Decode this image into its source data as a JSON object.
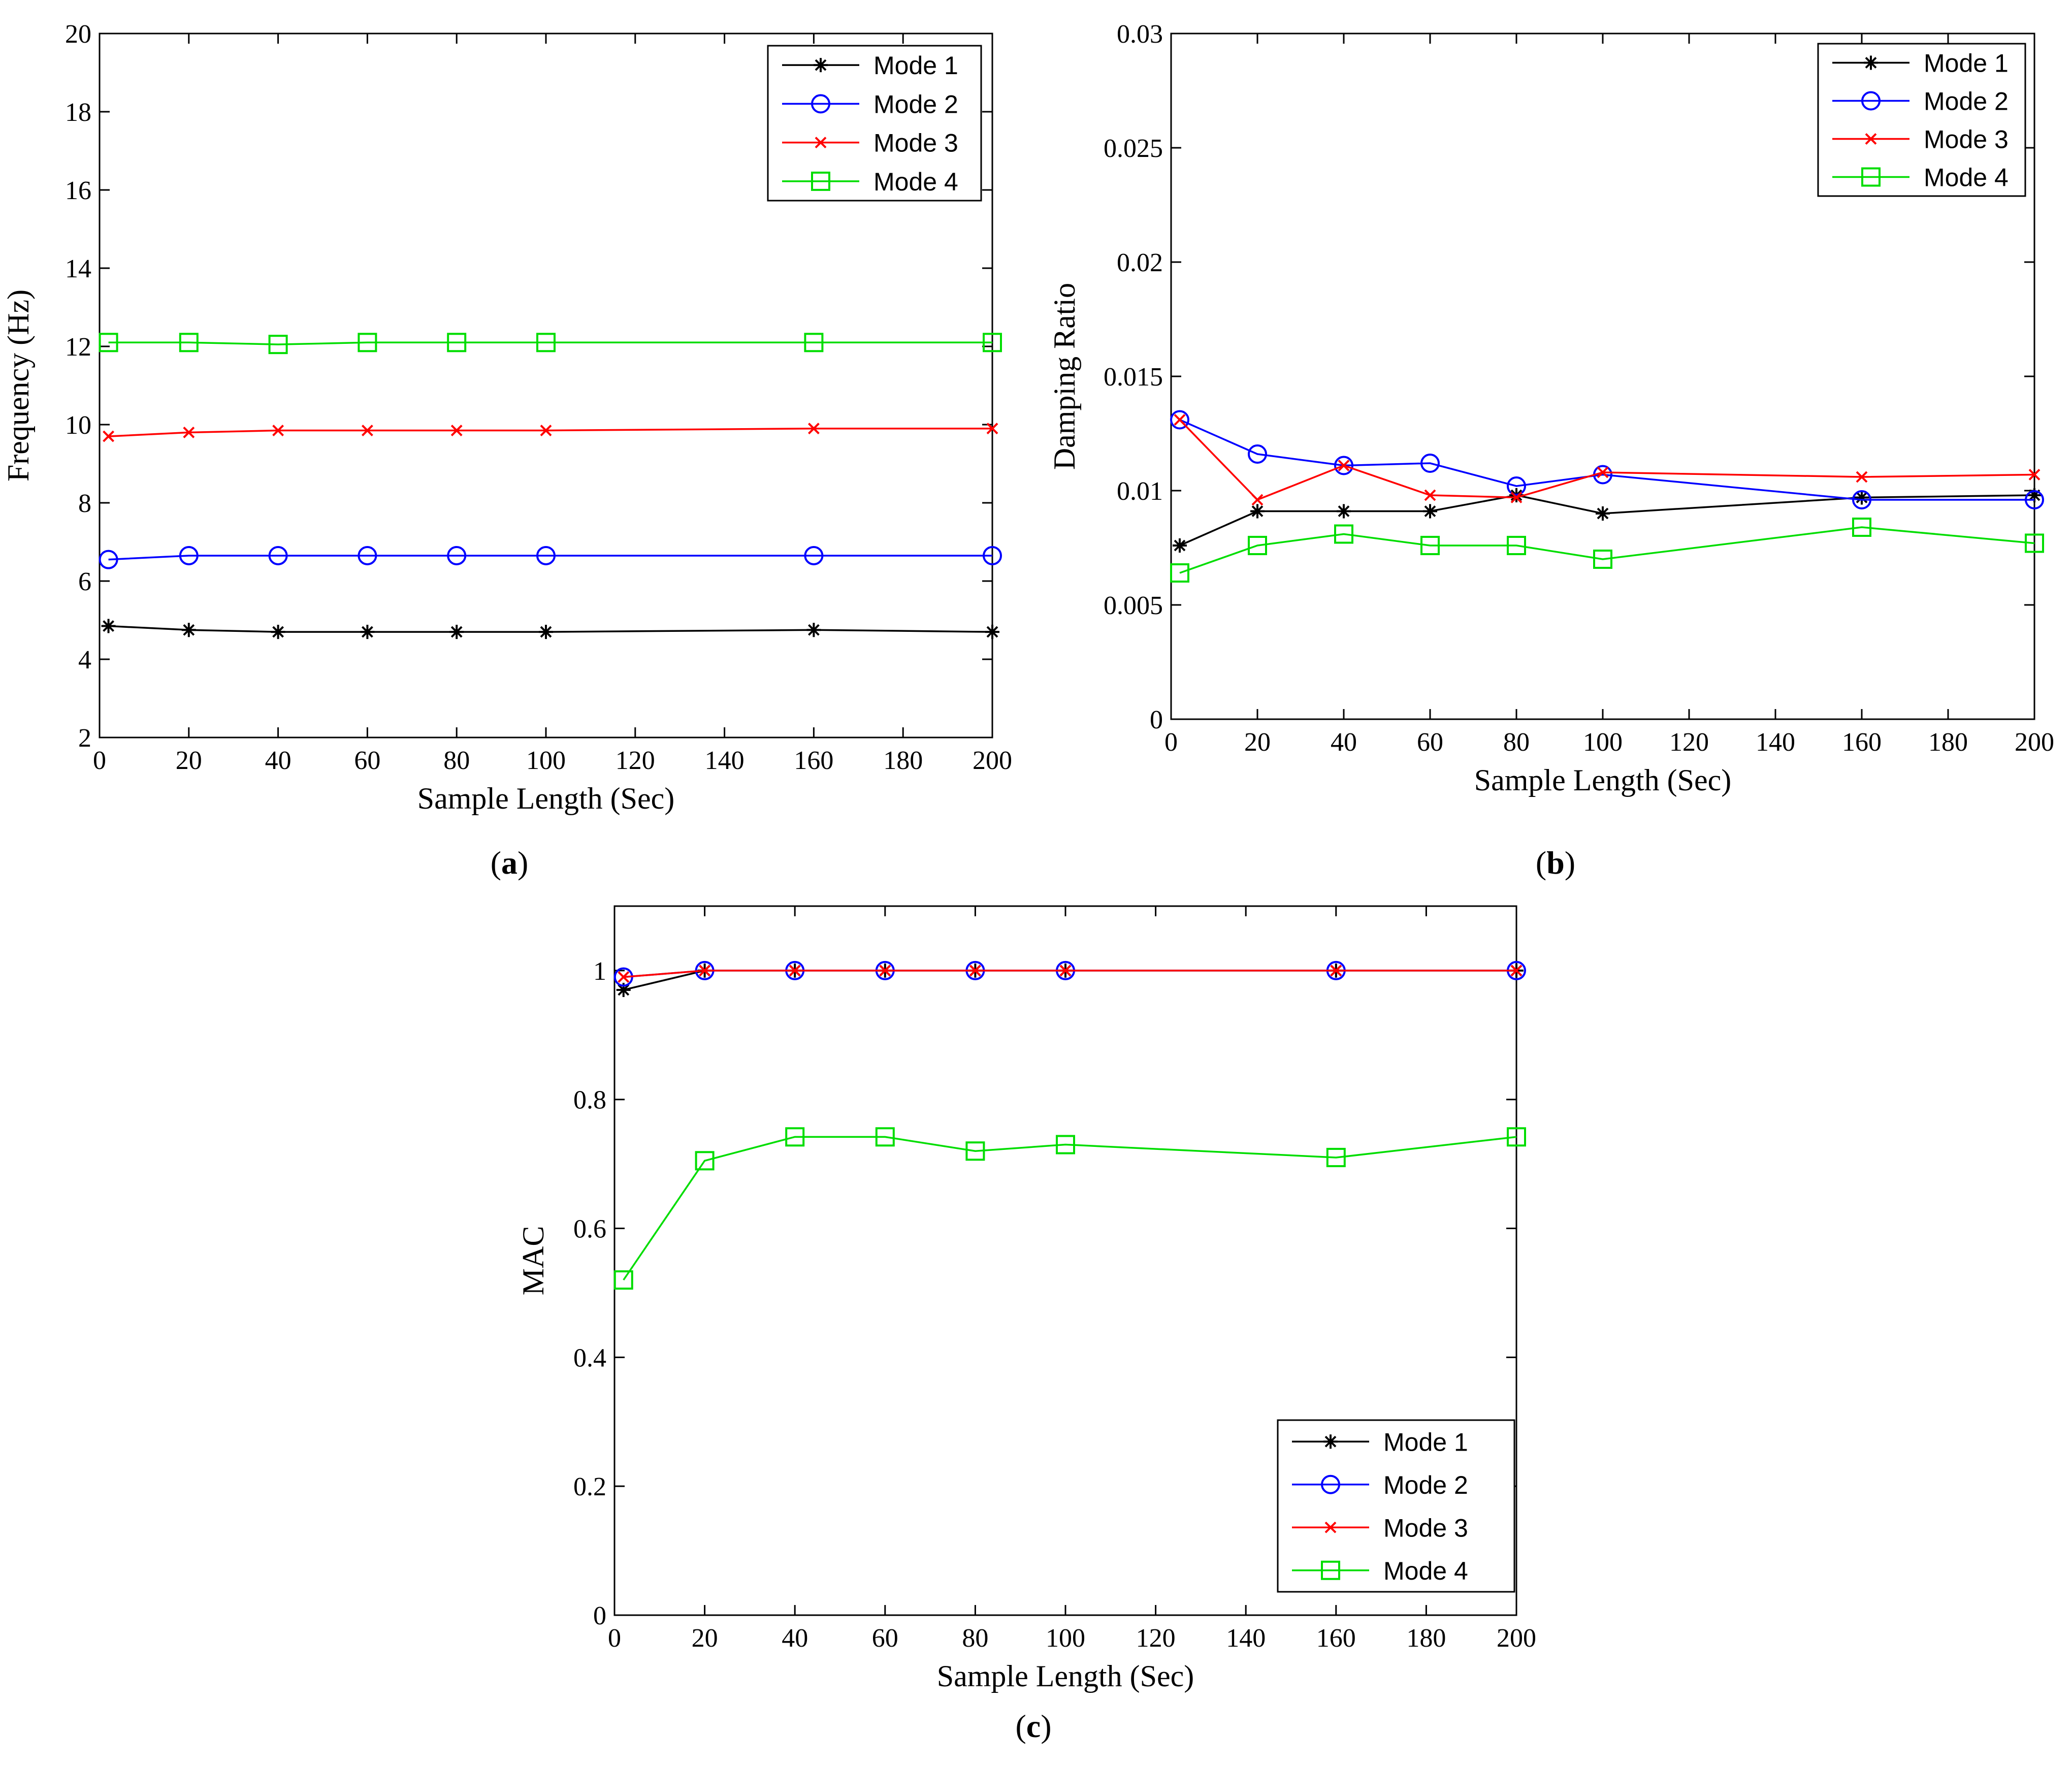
{
  "figure": {
    "panels": [
      "(a)",
      "(b)",
      "(c)"
    ]
  },
  "chart_data": [
    {
      "type": "line",
      "panel": "a",
      "panel_label": "a",
      "xlabel": "Sample Length (Sec)",
      "ylabel": "Frequency (Hz)",
      "xlim": [
        0,
        200
      ],
      "ylim": [
        2,
        20
      ],
      "xticks": [
        0,
        20,
        40,
        60,
        80,
        100,
        120,
        140,
        160,
        180,
        200
      ],
      "yticks": [
        2,
        4,
        6,
        8,
        10,
        12,
        14,
        16,
        18,
        20
      ],
      "legend_position": "top-right",
      "x": [
        2,
        20,
        40,
        60,
        80,
        100,
        160,
        200
      ],
      "series": [
        {
          "name": "Mode 1",
          "color": "#000000",
          "marker": "star",
          "values": [
            4.85,
            4.75,
            4.7,
            4.7,
            4.7,
            4.7,
            4.75,
            4.7
          ]
        },
        {
          "name": "Mode 2",
          "color": "#0000ff",
          "marker": "circle",
          "values": [
            6.55,
            6.65,
            6.65,
            6.65,
            6.65,
            6.65,
            6.65,
            6.65
          ]
        },
        {
          "name": "Mode 3",
          "color": "#ff0000",
          "marker": "x",
          "values": [
            9.7,
            9.8,
            9.85,
            9.85,
            9.85,
            9.85,
            9.9,
            9.9
          ]
        },
        {
          "name": "Mode 4",
          "color": "#00dd00",
          "marker": "square",
          "values": [
            12.1,
            12.1,
            12.05,
            12.1,
            12.1,
            12.1,
            12.1,
            12.1
          ]
        }
      ]
    },
    {
      "type": "line",
      "panel": "b",
      "panel_label": "b",
      "xlabel": "Sample Length (Sec)",
      "ylabel": "Damping Ratio",
      "xlim": [
        0,
        200
      ],
      "ylim": [
        0,
        0.03
      ],
      "xticks": [
        0,
        20,
        40,
        60,
        80,
        100,
        120,
        140,
        160,
        180,
        200
      ],
      "yticks": [
        0,
        0.005,
        0.01,
        0.015,
        0.02,
        0.025,
        0.03
      ],
      "ytick_labels": [
        "0",
        "0.005",
        "0.01",
        "0.015",
        "0.02",
        "0.025",
        "0.03"
      ],
      "legend_position": "top-right",
      "x": [
        2,
        20,
        40,
        60,
        80,
        100,
        160,
        200
      ],
      "series": [
        {
          "name": "Mode 1",
          "color": "#000000",
          "marker": "star",
          "values": [
            0.0076,
            0.0091,
            0.0091,
            0.0091,
            0.0098,
            0.009,
            0.0097,
            0.0098
          ]
        },
        {
          "name": "Mode 2",
          "color": "#0000ff",
          "marker": "circle",
          "values": [
            0.0131,
            0.0116,
            0.0111,
            0.0112,
            0.0102,
            0.0107,
            0.0096,
            0.0096
          ]
        },
        {
          "name": "Mode 3",
          "color": "#ff0000",
          "marker": "x",
          "values": [
            0.0131,
            0.0096,
            0.0111,
            0.0098,
            0.0097,
            0.0108,
            0.0106,
            0.0107
          ]
        },
        {
          "name": "Mode 4",
          "color": "#00dd00",
          "marker": "square",
          "values": [
            0.0064,
            0.0076,
            0.0081,
            0.0076,
            0.0076,
            0.007,
            0.0084,
            0.0077
          ]
        }
      ]
    },
    {
      "type": "line",
      "panel": "c",
      "panel_label": "c",
      "xlabel": "Sample Length (Sec)",
      "ylabel": "MAC",
      "xlim": [
        0,
        200
      ],
      "ylim": [
        0,
        1.1
      ],
      "xticks": [
        0,
        20,
        40,
        60,
        80,
        100,
        120,
        140,
        160,
        180,
        200
      ],
      "yticks": [
        0,
        0.2,
        0.4,
        0.6,
        0.8,
        1
      ],
      "ytick_labels": [
        "0",
        "0.2",
        "0.4",
        "0.6",
        "0.8",
        "1"
      ],
      "legend_position": "bottom-right",
      "x": [
        2,
        20,
        40,
        60,
        80,
        100,
        160,
        200
      ],
      "series": [
        {
          "name": "Mode 1",
          "color": "#000000",
          "marker": "star",
          "values": [
            0.97,
            1,
            1,
            1,
            1,
            1,
            1,
            1
          ]
        },
        {
          "name": "Mode 2",
          "color": "#0000ff",
          "marker": "circle",
          "values": [
            0.99,
            1,
            1,
            1,
            1,
            1,
            1,
            1
          ]
        },
        {
          "name": "Mode 3",
          "color": "#ff0000",
          "marker": "x",
          "values": [
            0.99,
            1,
            1,
            1,
            1,
            1,
            1,
            1
          ]
        },
        {
          "name": "Mode 4",
          "color": "#00dd00",
          "marker": "square",
          "values": [
            0.52,
            0.705,
            0.742,
            0.742,
            0.72,
            0.73,
            0.71,
            0.742
          ]
        }
      ]
    }
  ]
}
